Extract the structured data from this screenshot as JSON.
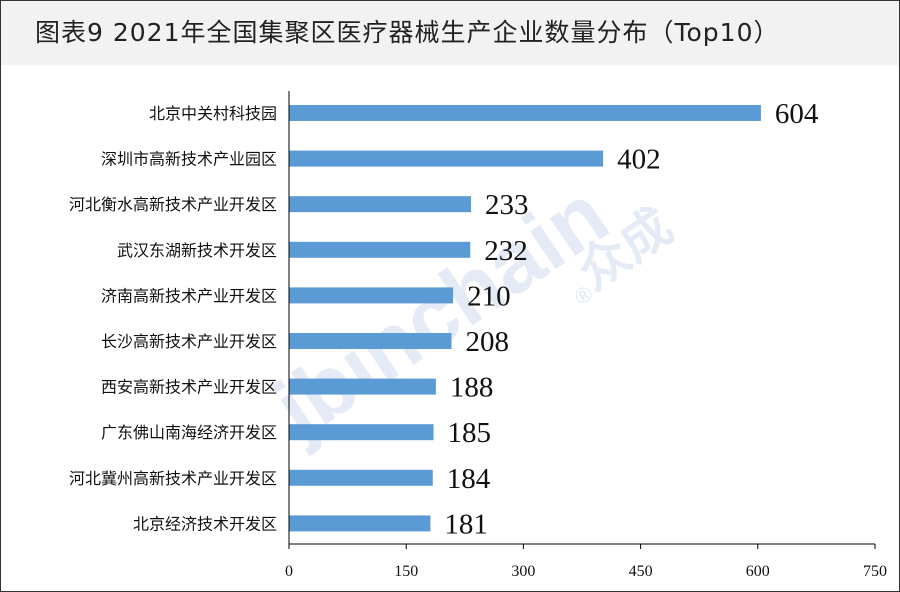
{
  "title": "图表9  2021年全国集聚区医疗器械生产企业数量分布（Top10）",
  "watermark": {
    "text": "jbinchain",
    "registered": "®",
    "chinese": "众成"
  },
  "chart_data": {
    "type": "bar",
    "orientation": "horizontal",
    "title": "图表9  2021年全国集聚区医疗器械生产企业数量分布（Top10）",
    "categories": [
      "北京中关村科技园",
      "深圳市高新技术产业园区",
      "河北衡水高新技术产业开发区",
      "武汉东湖新技术开发区",
      "济南高新技术产业开发区",
      "长沙高新技术产业开发区",
      "西安高新技术产业开发区",
      "广东佛山南海经济开发区",
      "河北冀州高新技术产业开发区",
      "北京经济技术开发区"
    ],
    "values": [
      604,
      402,
      233,
      232,
      210,
      208,
      188,
      185,
      184,
      181
    ],
    "xlim": [
      0,
      750
    ],
    "xticks": [
      0,
      150,
      300,
      450,
      600,
      750
    ],
    "bar_color": "#5b9bd5",
    "grid": false,
    "legend": "none"
  }
}
